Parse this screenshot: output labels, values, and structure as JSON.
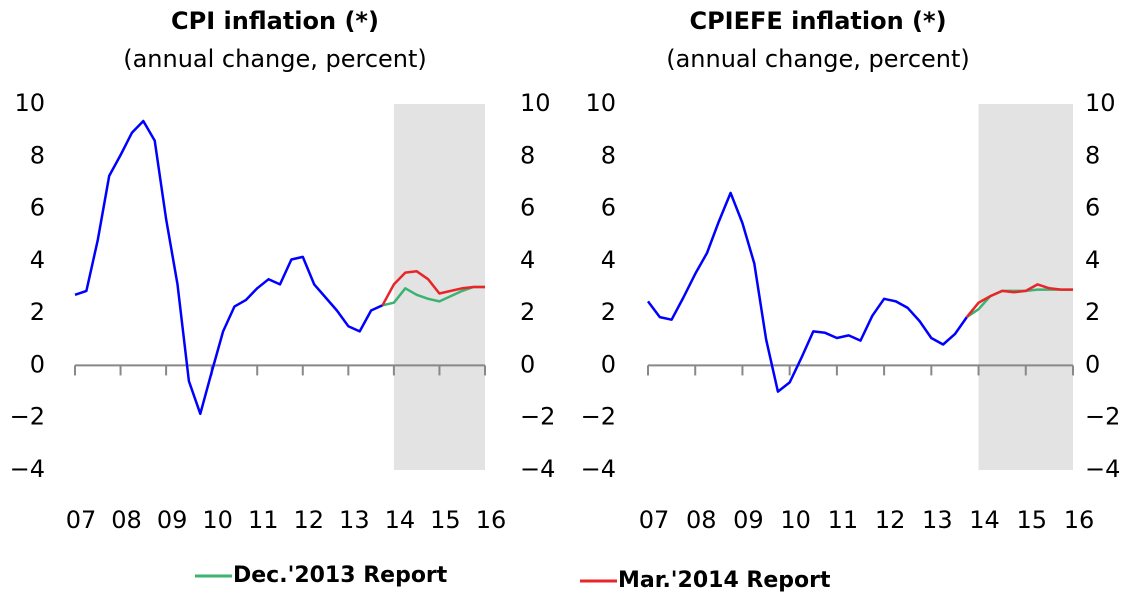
{
  "chart_data": [
    {
      "type": "line",
      "title": "CPI inflation (*)",
      "subtitle": "(annual change, percent)",
      "x": [
        2007,
        2007.25,
        2007.5,
        2007.75,
        2008,
        2008.25,
        2008.5,
        2008.75,
        2009,
        2009.25,
        2009.5,
        2009.75,
        2010,
        2010.25,
        2010.5,
        2010.75,
        2011,
        2011.25,
        2011.5,
        2011.75,
        2012,
        2012.25,
        2012.5,
        2012.75,
        2013,
        2013.25,
        2013.5,
        2013.75,
        2014,
        2014.25,
        2014.5,
        2014.75,
        2015,
        2015.25,
        2015.5,
        2015.75,
        2016
      ],
      "xlim": [
        2007,
        2016
      ],
      "xticks": [
        {
          "value": 2007,
          "label": "07"
        },
        {
          "value": 2008,
          "label": "08"
        },
        {
          "value": 2009,
          "label": "09"
        },
        {
          "value": 2010,
          "label": "10"
        },
        {
          "value": 2011,
          "label": "11"
        },
        {
          "value": 2012,
          "label": "12"
        },
        {
          "value": 2013,
          "label": "13"
        },
        {
          "value": 2014,
          "label": "14"
        },
        {
          "value": 2015,
          "label": "15"
        },
        {
          "value": 2016,
          "label": "16"
        }
      ],
      "ylim": [
        -4,
        10
      ],
      "yticks": [
        {
          "value": -4,
          "label": "−4"
        },
        {
          "value": -2,
          "label": "−2"
        },
        0,
        2,
        4,
        6,
        8,
        10
      ],
      "shade": {
        "x": [
          2014,
          2016
        ],
        "color": "#e3e3e3"
      },
      "series": [
        {
          "color": "#0000ff",
          "values": [
            2.7,
            2.85,
            4.8,
            7.25,
            8.05,
            8.9,
            9.35,
            8.6,
            5.6,
            3.1,
            -0.6,
            -1.85,
            -0.25,
            1.3,
            2.25,
            2.5,
            2.95,
            3.3,
            3.1,
            4.05,
            4.15,
            3.1,
            2.6,
            2.1,
            1.5,
            1.3,
            2.1,
            2.3,
            null,
            null,
            null,
            null,
            null,
            null,
            null,
            null,
            null
          ]
        },
        {
          "name": "Dec.'2013 Report",
          "color": "#3cb371",
          "values": [
            null,
            null,
            null,
            null,
            null,
            null,
            null,
            null,
            null,
            null,
            null,
            null,
            null,
            null,
            null,
            null,
            null,
            null,
            null,
            null,
            null,
            null,
            null,
            null,
            null,
            null,
            null,
            2.3,
            2.4,
            2.95,
            2.7,
            2.55,
            2.45,
            2.65,
            2.85,
            3.0,
            3.0
          ]
        },
        {
          "name": "Mar.'2014 Report",
          "color": "#e8262a",
          "values": [
            null,
            null,
            null,
            null,
            null,
            null,
            null,
            null,
            null,
            null,
            null,
            null,
            null,
            null,
            null,
            null,
            null,
            null,
            null,
            null,
            null,
            null,
            null,
            null,
            null,
            null,
            null,
            2.3,
            3.1,
            3.55,
            3.6,
            3.3,
            2.75,
            2.85,
            2.95,
            3.0,
            3.0
          ]
        }
      ]
    },
    {
      "type": "line",
      "title": "CPIEFE inflation (*)",
      "subtitle": "(annual change, percent)",
      "x": [
        2007,
        2007.25,
        2007.5,
        2007.75,
        2008,
        2008.25,
        2008.5,
        2008.75,
        2009,
        2009.25,
        2009.5,
        2009.75,
        2010,
        2010.25,
        2010.5,
        2010.75,
        2011,
        2011.25,
        2011.5,
        2011.75,
        2012,
        2012.25,
        2012.5,
        2012.75,
        2013,
        2013.25,
        2013.5,
        2013.75,
        2014,
        2014.25,
        2014.5,
        2014.75,
        2015,
        2015.25,
        2015.5,
        2015.75,
        2016
      ],
      "xlim": [
        2007,
        2016
      ],
      "xticks": [
        {
          "value": 2007,
          "label": "07"
        },
        {
          "value": 2008,
          "label": "08"
        },
        {
          "value": 2009,
          "label": "09"
        },
        {
          "value": 2010,
          "label": "10"
        },
        {
          "value": 2011,
          "label": "11"
        },
        {
          "value": 2012,
          "label": "12"
        },
        {
          "value": 2013,
          "label": "13"
        },
        {
          "value": 2014,
          "label": "14"
        },
        {
          "value": 2015,
          "label": "15"
        },
        {
          "value": 2016,
          "label": "16"
        }
      ],
      "ylim": [
        -4,
        10
      ],
      "yticks": [
        {
          "value": -4,
          "label": "−4"
        },
        {
          "value": -2,
          "label": "−2"
        },
        0,
        2,
        4,
        6,
        8,
        10
      ],
      "shade": {
        "x": [
          2014,
          2016
        ],
        "color": "#e3e3e3"
      },
      "series": [
        {
          "color": "#0000ff",
          "values": [
            2.45,
            1.85,
            1.75,
            2.6,
            3.5,
            4.3,
            5.5,
            6.6,
            5.45,
            3.9,
            1.0,
            -1.0,
            -0.65,
            0.3,
            1.3,
            1.25,
            1.05,
            1.15,
            0.95,
            1.9,
            2.55,
            2.45,
            2.2,
            1.7,
            1.05,
            0.8,
            1.2,
            1.85,
            null,
            null,
            null,
            null,
            null,
            null,
            null,
            null,
            null
          ]
        },
        {
          "color": "#3cb371",
          "values": [
            null,
            null,
            null,
            null,
            null,
            null,
            null,
            null,
            null,
            null,
            null,
            null,
            null,
            null,
            null,
            null,
            null,
            null,
            null,
            null,
            null,
            null,
            null,
            null,
            null,
            null,
            null,
            1.85,
            2.15,
            2.65,
            2.85,
            2.85,
            2.85,
            2.9,
            2.9,
            2.9,
            2.9
          ]
        },
        {
          "color": "#e8262a",
          "values": [
            null,
            null,
            null,
            null,
            null,
            null,
            null,
            null,
            null,
            null,
            null,
            null,
            null,
            null,
            null,
            null,
            null,
            null,
            null,
            null,
            null,
            null,
            null,
            null,
            null,
            null,
            null,
            1.85,
            2.4,
            2.65,
            2.85,
            2.8,
            2.85,
            3.1,
            2.95,
            2.9,
            2.9
          ]
        }
      ]
    }
  ]
}
